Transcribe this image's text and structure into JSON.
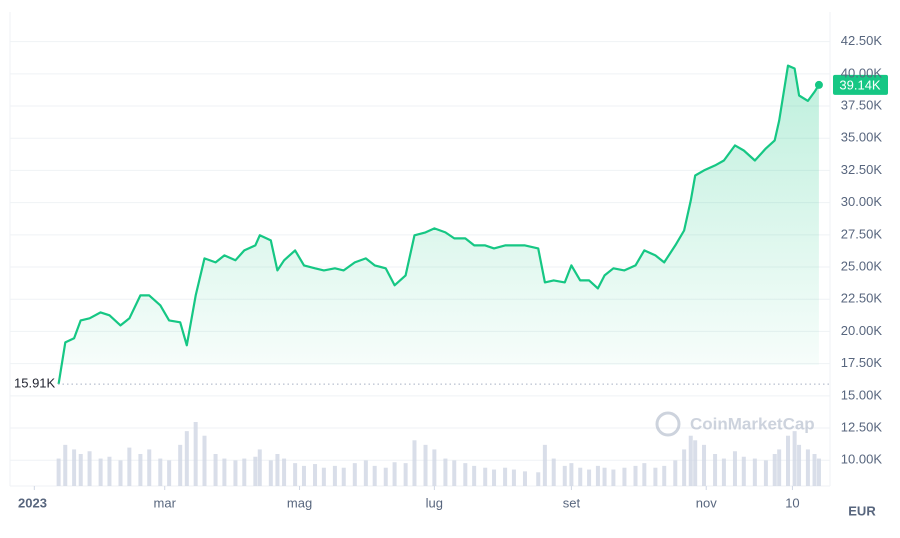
{
  "chart_data": {
    "type": "line",
    "color": "#16c784",
    "x": [
      11,
      14,
      18,
      21,
      25,
      30,
      34,
      39,
      43,
      48,
      52,
      57,
      61,
      66,
      69,
      73,
      77,
      82,
      86,
      91,
      95,
      100,
      102,
      107,
      110,
      113,
      118,
      122,
      127,
      131,
      136,
      140,
      145,
      150,
      154,
      159,
      163,
      168,
      172,
      177,
      181,
      186,
      190,
      195,
      199,
      204,
      208,
      213,
      217,
      222,
      228,
      231,
      235,
      240,
      243,
      247,
      251,
      255,
      258,
      262,
      267,
      272,
      276,
      281,
      285,
      290,
      294,
      297,
      299,
      303,
      308,
      312,
      317,
      321,
      326,
      331,
      335,
      337,
      341,
      344,
      346,
      350,
      353,
      355
    ],
    "values": [
      15910,
      19150,
      19470,
      20860,
      21020,
      21480,
      21250,
      20470,
      21020,
      22800,
      22800,
      22030,
      20860,
      20710,
      18920,
      22800,
      25670,
      25360,
      25900,
      25520,
      26290,
      26680,
      27460,
      27070,
      24740,
      25520,
      26290,
      25130,
      24900,
      24740,
      24900,
      24740,
      25360,
      25670,
      25130,
      24900,
      23580,
      24350,
      27460,
      27690,
      28000,
      27690,
      27220,
      27220,
      26680,
      26680,
      26450,
      26680,
      26680,
      26680,
      26450,
      23810,
      23960,
      23810,
      25130,
      23960,
      23960,
      23340,
      24350,
      24900,
      24740,
      25130,
      26290,
      25900,
      25360,
      26680,
      27840,
      30170,
      32110,
      32500,
      32890,
      33270,
      34440,
      34050,
      33270,
      34210,
      34830,
      36380,
      40640,
      40410,
      38320,
      37900,
      38600,
      39140
    ],
    "volume": {
      "color": "#cfd6e4",
      "values": [
        30,
        45,
        40,
        35,
        38,
        30,
        32,
        28,
        42,
        35,
        40,
        30,
        28,
        45,
        60,
        70,
        55,
        35,
        30,
        28,
        30,
        32,
        40,
        28,
        35,
        30,
        25,
        22,
        24,
        20,
        22,
        20,
        25,
        28,
        22,
        20,
        26,
        25,
        50,
        45,
        40,
        30,
        28,
        25,
        22,
        20,
        18,
        20,
        18,
        16,
        15,
        45,
        30,
        22,
        25,
        20,
        18,
        22,
        20,
        18,
        20,
        22,
        25,
        20,
        22,
        28,
        40,
        55,
        50,
        45,
        35,
        30,
        38,
        32,
        30,
        28,
        35,
        40,
        55,
        60,
        45,
        40,
        35,
        30
      ]
    },
    "xlim": [
      -11,
      360
    ],
    "xticks": [
      {
        "value": 0,
        "label": "2023"
      },
      {
        "value": 59,
        "label": "mar"
      },
      {
        "value": 120,
        "label": "mag"
      },
      {
        "value": 181,
        "label": "lug"
      },
      {
        "value": 243,
        "label": "set"
      },
      {
        "value": 304,
        "label": "nov"
      },
      {
        "value": 343,
        "label": "10"
      }
    ],
    "ylim": [
      8000,
      44800
    ],
    "yticks": [
      {
        "value": 10000,
        "label": "10.00K"
      },
      {
        "value": 12500,
        "label": "12.50K"
      },
      {
        "value": 15000,
        "label": "15.00K"
      },
      {
        "value": 17500,
        "label": "17.50K"
      },
      {
        "value": 20000,
        "label": "20.00K"
      },
      {
        "value": 22500,
        "label": "22.50K"
      },
      {
        "value": 25000,
        "label": "25.00K"
      },
      {
        "value": 27500,
        "label": "27.50K"
      },
      {
        "value": 30000,
        "label": "30.00K"
      },
      {
        "value": 32500,
        "label": "32.50K"
      },
      {
        "value": 35000,
        "label": "35.00K"
      },
      {
        "value": 37500,
        "label": "37.50K"
      },
      {
        "value": 40000,
        "label": "40.00K"
      },
      {
        "value": 42500,
        "label": "42.50K"
      }
    ],
    "grid": true,
    "start_price": {
      "value": 15910,
      "label": "15.91K"
    },
    "last_price": {
      "value": 39140,
      "label": "39.14K"
    },
    "currency": "EUR",
    "watermark": "CoinMarketCap"
  }
}
